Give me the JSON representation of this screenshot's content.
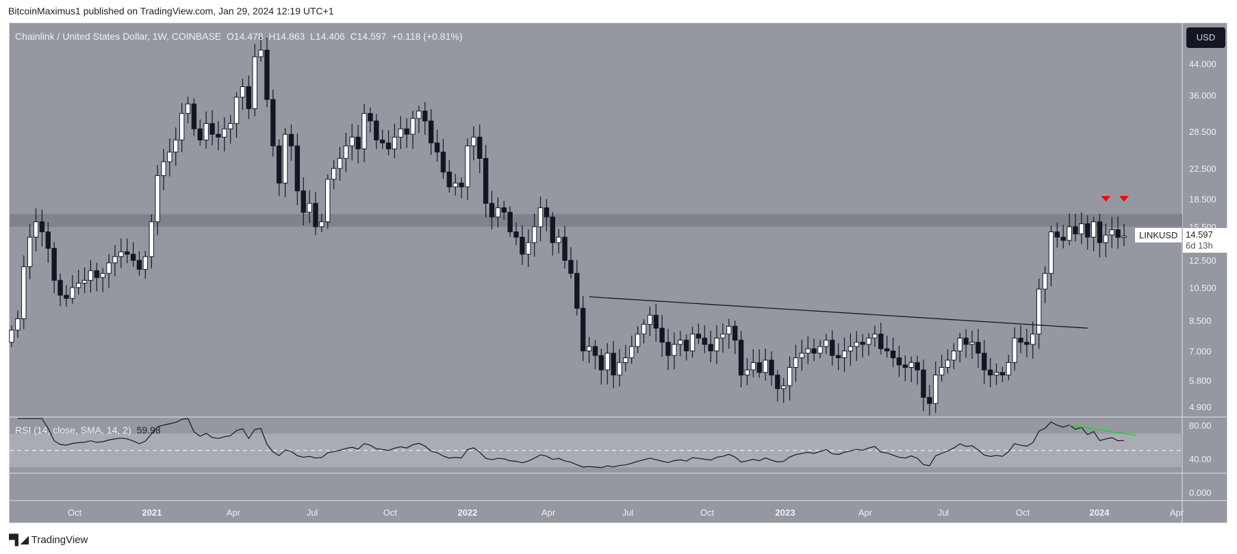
{
  "publisher_line": "BitcoinMaximus1 published on TradingView.com, Jan 29, 2024 12:19 UTC+1",
  "legend": {
    "symbol": "Chainlink / United States Dollar, 1W, COINBASE",
    "o": "O14.478",
    "h": "H14.863",
    "l": "L14.406",
    "c": "C14.597",
    "chg": "+0.118 (+0.81%)"
  },
  "currency_button": "USD",
  "last_price": {
    "ticker": "LINKUSD",
    "price": "14.597",
    "countdown": "6d 13h"
  },
  "rsi": {
    "label": "RSI (14, close, SMA, 14, 2)",
    "value": "59.98"
  },
  "logo": "TradingView",
  "colors": {
    "bg": "#9598a1",
    "up": "#ffffff",
    "down": "#131722",
    "marker": "#ff0000",
    "divergence": "#00e600"
  },
  "chart_data": {
    "type": "candlestick",
    "title": "Chainlink / United States Dollar, 1W, COINBASE",
    "first_week": "2020-07-13",
    "interval": "1W",
    "closes": [
      8.0,
      8.6,
      12.0,
      14.5,
      16.0,
      15.0,
      13.5,
      11.0,
      10.0,
      9.8,
      10.5,
      10.8,
      11.0,
      11.7,
      11.2,
      11.5,
      12.3,
      12.8,
      13.2,
      13.0,
      12.5,
      11.8,
      12.8,
      16.0,
      21.5,
      23.5,
      25.0,
      27.0,
      32.0,
      34.0,
      29.0,
      27.0,
      30.0,
      28.0,
      27.5,
      29.0,
      30.0,
      35.5,
      38.0,
      33.0,
      46.0,
      48.0,
      35.0,
      26.0,
      20.5,
      28.0,
      26.0,
      19.5,
      17.0,
      18.0,
      15.5,
      16.0,
      21.0,
      22.5,
      24.0,
      26.0,
      27.5,
      25.5,
      32.0,
      30.5,
      27.0,
      26.5,
      25.5,
      27.5,
      29.0,
      28.0,
      31.0,
      32.5,
      30.5,
      26.5,
      25.0,
      22.0,
      20.0,
      20.5,
      20.0,
      26.0,
      27.5,
      24.0,
      18.0,
      16.5,
      17.5,
      17.0,
      15.0,
      14.5,
      13.0,
      14.0,
      15.5,
      17.5,
      16.5,
      14.0,
      14.5,
      12.5,
      11.5,
      9.2,
      7.0,
      7.2,
      6.8,
      6.2,
      6.9,
      6.0,
      6.5,
      6.7,
      7.2,
      7.8,
      8.3,
      8.8,
      8.1,
      7.4,
      6.8,
      7.3,
      7.5,
      7.0,
      7.8,
      7.6,
      7.3,
      7.0,
      7.6,
      7.8,
      8.2,
      7.5,
      6.0,
      6.2,
      6.5,
      6.1,
      6.6,
      6.0,
      5.5,
      5.6,
      6.3,
      6.7,
      6.9,
      7.1,
      6.9,
      7.2,
      7.5,
      6.8,
      6.7,
      7.0,
      7.2,
      7.4,
      7.3,
      7.6,
      7.8,
      7.1,
      7.0,
      6.7,
      6.4,
      6.3,
      6.5,
      6.2,
      5.2,
      5.0,
      6.0,
      6.3,
      6.6,
      7.0,
      7.6,
      7.3,
      7.4,
      6.9,
      6.2,
      6.0,
      6.1,
      6.0,
      6.5,
      7.6,
      7.4,
      7.3,
      7.8,
      10.4,
      11.5,
      15.0,
      14.5,
      14.2,
      15.5,
      14.8,
      15.8,
      14.5,
      16.0,
      14.0,
      14.7,
      15.2,
      14.478,
      14.597
    ],
    "first_open": 7.4,
    "price_axis": {
      "scale": "log",
      "ticks": [
        "44.000",
        "36.000",
        "28.500",
        "22.500",
        "18.500",
        "15.500",
        "12.500",
        "10.500",
        "8.500",
        "7.000",
        "5.800",
        "4.900"
      ]
    },
    "rsi_axis": {
      "ticks": [
        "80.00",
        "40.00",
        "0.000"
      ],
      "band": [
        30,
        70
      ],
      "mid": 50
    },
    "time_axis": [
      "Oct",
      "2021",
      "Apr",
      "Jul",
      "Oct",
      "2022",
      "Apr",
      "Jul",
      "Oct",
      "2023",
      "Apr",
      "Jul",
      "Oct",
      "2024",
      "Apr"
    ],
    "annotations": {
      "resistance_zone": [
        15.5,
        16.8
      ],
      "descending_trendline": {
        "from": [
          "2022-05-09",
          9.9
        ],
        "to": [
          "2023-12-04",
          8.1
        ]
      },
      "bearish_markers": [
        "2023-12-25",
        "2024-01-15"
      ],
      "rsi_bearish_divergence": {
        "from": [
          "2023-11-13",
          80
        ],
        "to": [
          "2024-01-29",
          68
        ]
      }
    }
  }
}
